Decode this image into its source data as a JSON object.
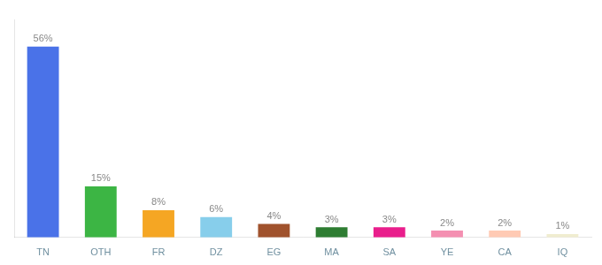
{
  "chart_data": {
    "type": "bar",
    "categories": [
      "TN",
      "OTH",
      "FR",
      "DZ",
      "EG",
      "MA",
      "SA",
      "YE",
      "CA",
      "IQ"
    ],
    "values": [
      56,
      15,
      8,
      6,
      4,
      3,
      3,
      2,
      2,
      1
    ],
    "value_labels": [
      "56%",
      "15%",
      "8%",
      "6%",
      "4%",
      "3%",
      "3%",
      "2%",
      "2%",
      "1%"
    ],
    "data_labels": true,
    "colors": [
      "#4A72E8",
      "#3CB544",
      "#F5A623",
      "#87CEEB",
      "#A0522D",
      "#2E7D32",
      "#E91E8C",
      "#F48FB1",
      "#FFCAB4",
      "#F0EDD0"
    ],
    "ylim": [
      0,
      64
    ],
    "grid": false,
    "tick_labels": "x"
  }
}
